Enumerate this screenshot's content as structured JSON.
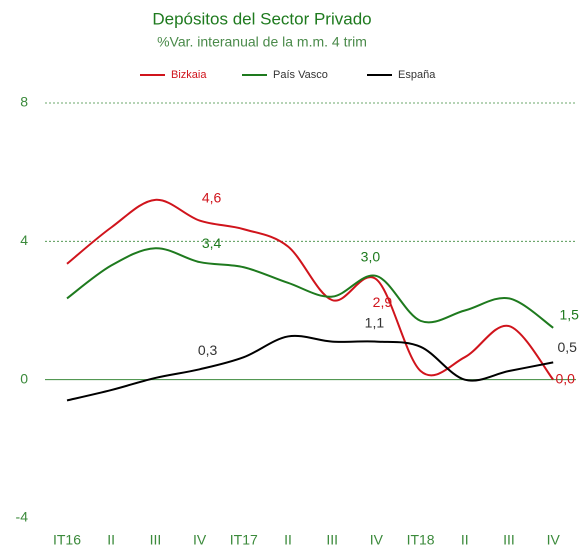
{
  "chart_data": {
    "type": "line",
    "title": "Depósitos del Sector Privado",
    "subtitle": "%Var. interanual de la m.m. 4 trim",
    "categories": [
      "IT16",
      "II",
      "III",
      "IV",
      "IT17",
      "II",
      "III",
      "IV",
      "IT18",
      "II",
      "III",
      "IV"
    ],
    "series": [
      {
        "name": "Bizkaia",
        "color": "#d0141c",
        "values": [
          3.35,
          4.4,
          5.2,
          4.6,
          4.35,
          3.85,
          2.3,
          2.9,
          0.25,
          0.65,
          1.55,
          0.0
        ],
        "value_labels": [
          null,
          null,
          null,
          "4,6",
          null,
          null,
          null,
          "2,9",
          null,
          null,
          null,
          "0,0"
        ]
      },
      {
        "name": "País Vasco",
        "color": "#1e7a1e",
        "values": [
          2.35,
          3.3,
          3.8,
          3.4,
          3.25,
          2.8,
          2.4,
          3.0,
          1.7,
          2.0,
          2.35,
          1.5
        ],
        "value_labels": [
          null,
          null,
          null,
          "3,4",
          null,
          null,
          null,
          "3,0",
          null,
          null,
          null,
          "1,5"
        ]
      },
      {
        "name": "España",
        "color": "#000000",
        "values": [
          -0.6,
          -0.3,
          0.05,
          0.3,
          0.65,
          1.25,
          1.1,
          1.1,
          0.95,
          0.0,
          0.25,
          0.5
        ],
        "value_labels": [
          null,
          null,
          null,
          "0,3",
          null,
          null,
          null,
          "1,1",
          null,
          null,
          null,
          "0,5"
        ]
      }
    ],
    "ylim": [
      -4,
      8
    ],
    "yticks": [
      -4,
      0,
      4,
      8
    ],
    "grid": true,
    "legend": "top"
  }
}
